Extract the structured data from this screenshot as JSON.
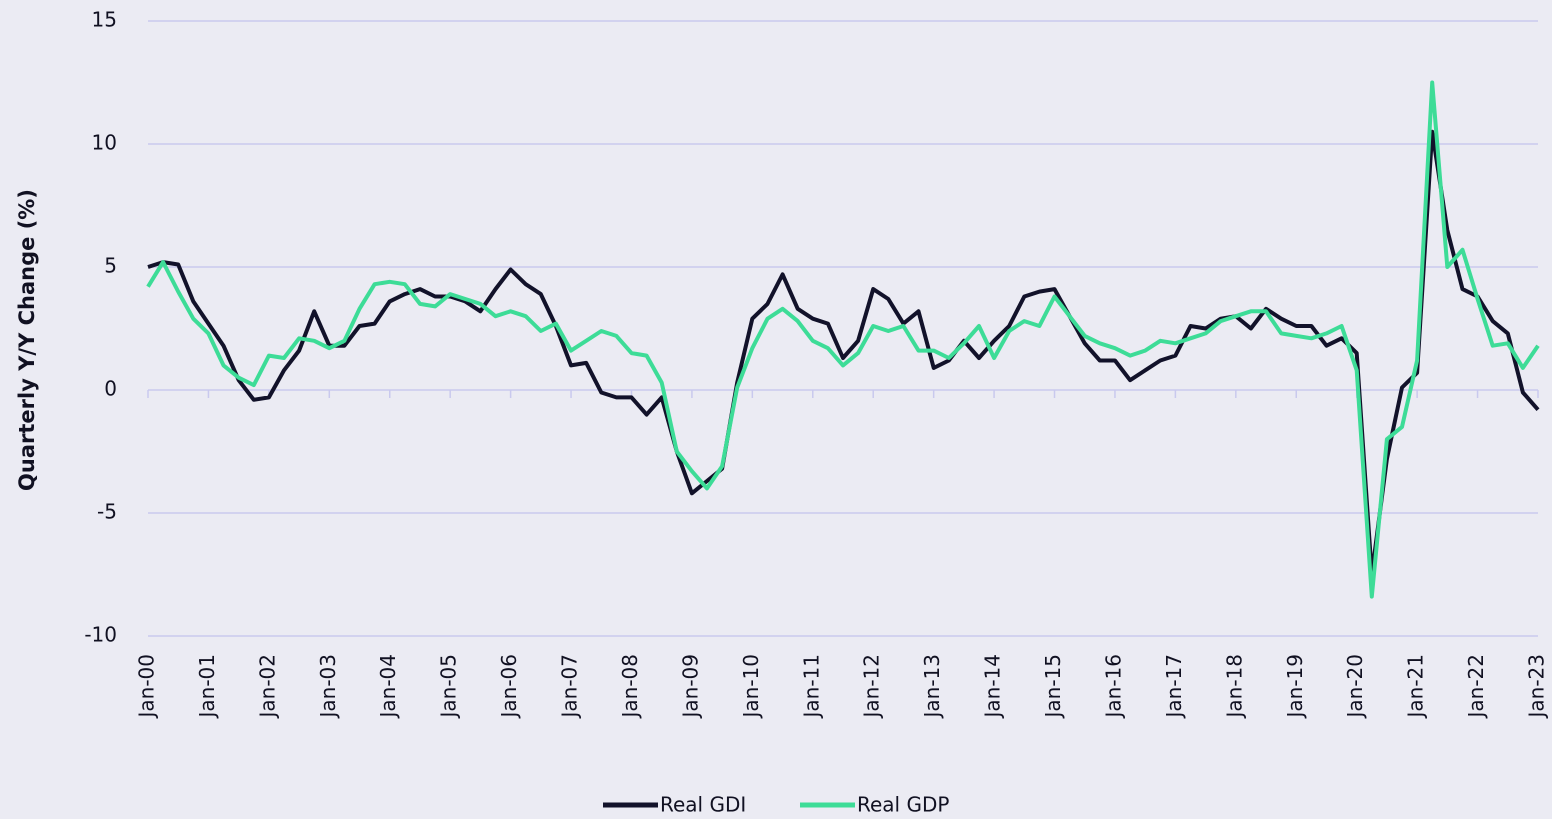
{
  "chart_data": {
    "type": "line",
    "y_label": "Quarterly Y/Y Change (%)",
    "categories": [
      "Jan-00",
      null,
      null,
      null,
      "Jan-01",
      null,
      null,
      null,
      "Jan-02",
      null,
      null,
      null,
      "Jan-03",
      null,
      null,
      null,
      "Jan-04",
      null,
      null,
      null,
      "Jan-05",
      null,
      null,
      null,
      "Jan-06",
      null,
      null,
      null,
      "Jan-07",
      null,
      null,
      null,
      "Jan-08",
      null,
      null,
      null,
      "Jan-09",
      null,
      null,
      null,
      "Jan-10",
      null,
      null,
      null,
      "Jan-11",
      null,
      null,
      null,
      "Jan-12",
      null,
      null,
      null,
      "Jan-13",
      null,
      null,
      null,
      "Jan-14",
      null,
      null,
      null,
      "Jan-15",
      null,
      null,
      null,
      "Jan-16",
      null,
      null,
      null,
      "Jan-17",
      null,
      null,
      null,
      "Jan-18",
      null,
      null,
      null,
      "Jan-19",
      null,
      null,
      null,
      "Jan-20",
      null,
      null,
      null,
      "Jan-21",
      null,
      null,
      null,
      "Jan-22",
      null,
      null,
      null,
      "Jan-23"
    ],
    "series": [
      {
        "name": "Real GDI",
        "color": "#12122a",
        "values": [
          5.0,
          5.2,
          5.1,
          3.6,
          2.7,
          1.8,
          0.4,
          -0.4,
          -0.3,
          0.8,
          1.6,
          3.2,
          1.8,
          1.8,
          2.6,
          2.7,
          3.6,
          3.9,
          4.1,
          3.8,
          3.8,
          3.6,
          3.2,
          4.1,
          4.9,
          4.3,
          3.9,
          2.6,
          1.0,
          1.1,
          -0.1,
          -0.3,
          -0.3,
          -1.0,
          -0.3,
          -2.5,
          -4.2,
          -3.7,
          -3.2,
          0.3,
          2.9,
          3.5,
          4.7,
          3.3,
          2.9,
          2.7,
          1.3,
          2.0,
          4.1,
          3.7,
          2.7,
          3.2,
          0.9,
          1.2,
          2.0,
          1.3,
          2.0,
          2.6,
          3.8,
          4.0,
          4.1,
          3.0,
          1.9,
          1.2,
          1.2,
          0.4,
          0.8,
          1.2,
          1.4,
          2.6,
          2.5,
          2.9,
          3.0,
          2.5,
          3.3,
          2.9,
          2.6,
          2.6,
          1.8,
          2.1,
          1.5,
          -7.5,
          -2.8,
          0.1,
          0.7,
          10.5,
          6.5,
          4.1,
          3.8,
          2.8,
          2.3,
          -0.1,
          -0.8
        ]
      },
      {
        "name": "Real GDP",
        "color": "#3ddc97",
        "values": [
          4.2,
          5.2,
          4.0,
          2.9,
          2.3,
          1.0,
          0.5,
          0.2,
          1.4,
          1.3,
          2.1,
          2.0,
          1.7,
          2.0,
          3.3,
          4.3,
          4.4,
          4.3,
          3.5,
          3.4,
          3.9,
          3.7,
          3.5,
          3.0,
          3.2,
          3.0,
          2.4,
          2.7,
          1.6,
          2.0,
          2.4,
          2.2,
          1.5,
          1.4,
          0.3,
          -2.5,
          -3.3,
          -4.0,
          -3.1,
          0.1,
          1.7,
          2.9,
          3.3,
          2.8,
          2.0,
          1.7,
          1.0,
          1.5,
          2.6,
          2.4,
          2.6,
          1.6,
          1.6,
          1.3,
          1.9,
          2.6,
          1.3,
          2.4,
          2.8,
          2.6,
          3.8,
          3.0,
          2.2,
          1.9,
          1.7,
          1.4,
          1.6,
          2.0,
          1.9,
          2.1,
          2.3,
          2.8,
          3.0,
          3.2,
          3.2,
          2.3,
          2.2,
          2.1,
          2.3,
          2.6,
          0.8,
          -8.4,
          -2.0,
          -1.5,
          1.2,
          12.5,
          5.0,
          5.7,
          3.7,
          1.8,
          1.9,
          0.9,
          1.8
        ]
      }
    ],
    "ylim": [
      -10,
      15
    ],
    "yticks": [
      -10,
      -5,
      0,
      5,
      10,
      15
    ],
    "grid": true,
    "legend": "bottom"
  }
}
